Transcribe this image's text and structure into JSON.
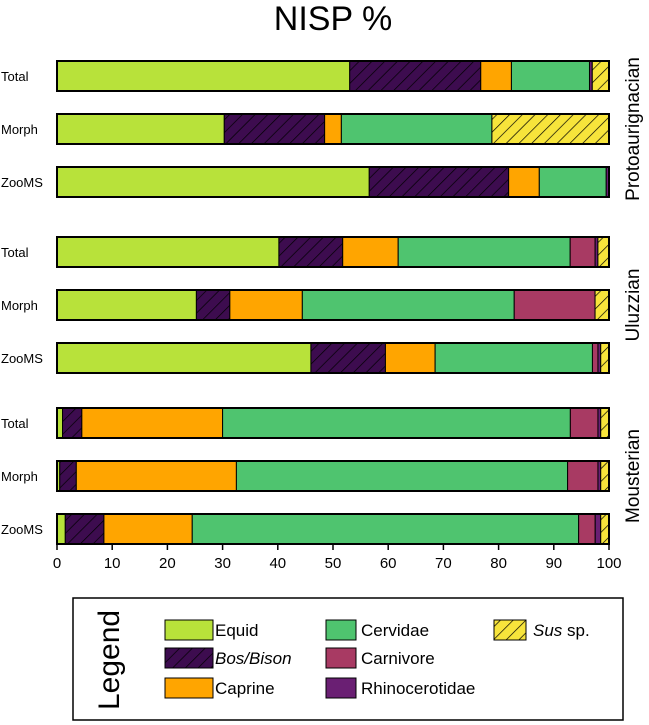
{
  "chart_data": {
    "type": "bar",
    "orientation": "horizontal",
    "stacked": true,
    "title": "NISP %",
    "xlabel": "",
    "ylabel": "",
    "xlim": [
      0,
      100
    ],
    "xticks": [
      0,
      10,
      20,
      30,
      40,
      50,
      60,
      70,
      80,
      90,
      100
    ],
    "categories_order": [
      "Equid",
      "Bos/Bison",
      "Caprine",
      "Cervidae",
      "Carnivore",
      "Rhinocerotidae",
      "Sus sp."
    ],
    "colors": {
      "Equid": "#b8e23a",
      "Bos/Bison": "#3d0c4f",
      "Caprine": "#ffa500",
      "Cervidae": "#4fc46f",
      "Carnivore": "#a83a63",
      "Rhinocerotidae": "#6a1f73",
      "Sus sp.": "#f7e43b",
      "outline": "#000000"
    },
    "hatched": [
      "Bos/Bison",
      "Sus sp."
    ],
    "groups": [
      {
        "name": "Protoaurignacian",
        "rows": [
          {
            "label": "Total",
            "values": {
              "Equid": 52.5,
              "Bos/Bison": 23.5,
              "Caprine": 5.5,
              "Cervidae": 14.0,
              "Carnivore": 0.0,
              "Rhinocerotidae": 0.5,
              "Sus sp.": 3.0
            }
          },
          {
            "label": "Morph",
            "values": {
              "Equid": 30.0,
              "Bos/Bison": 18.0,
              "Caprine": 3.0,
              "Cervidae": 27.0,
              "Carnivore": 0.0,
              "Rhinocerotidae": 0.0,
              "Sus sp.": 21.0
            }
          },
          {
            "label": "ZooMS",
            "values": {
              "Equid": 56.0,
              "Bos/Bison": 25.0,
              "Caprine": 5.5,
              "Cervidae": 12.0,
              "Carnivore": 0.0,
              "Rhinocerotidae": 0.5,
              "Sus sp.": 0.0
            }
          }
        ]
      },
      {
        "name": "Uluzzian",
        "rows": [
          {
            "label": "Total",
            "values": {
              "Equid": 40.0,
              "Bos/Bison": 11.5,
              "Caprine": 10.0,
              "Cervidae": 31.0,
              "Carnivore": 4.5,
              "Rhinocerotidae": 0.5,
              "Sus sp.": 2.0
            }
          },
          {
            "label": "Morph",
            "values": {
              "Equid": 25.0,
              "Bos/Bison": 6.0,
              "Caprine": 13.0,
              "Cervidae": 38.0,
              "Carnivore": 14.5,
              "Rhinocerotidae": 0.0,
              "Sus sp.": 2.5
            }
          },
          {
            "label": "ZooMS",
            "values": {
              "Equid": 46.0,
              "Bos/Bison": 13.5,
              "Caprine": 9.0,
              "Cervidae": 28.5,
              "Carnivore": 1.0,
              "Rhinocerotidae": 0.5,
              "Sus sp.": 1.5
            }
          }
        ]
      },
      {
        "name": "Mousterian",
        "rows": [
          {
            "label": "Total",
            "values": {
              "Equid": 1.0,
              "Bos/Bison": 3.5,
              "Caprine": 25.5,
              "Cervidae": 63.0,
              "Carnivore": 5.0,
              "Rhinocerotidae": 0.5,
              "Sus sp.": 1.5
            }
          },
          {
            "label": "Morph",
            "values": {
              "Equid": 0.5,
              "Bos/Bison": 3.0,
              "Caprine": 29.0,
              "Cervidae": 60.0,
              "Carnivore": 5.5,
              "Rhinocerotidae": 0.5,
              "Sus sp.": 1.5
            }
          },
          {
            "label": "ZooMS",
            "values": {
              "Equid": 1.5,
              "Bos/Bison": 7.0,
              "Caprine": 16.0,
              "Cervidae": 70.0,
              "Carnivore": 3.0,
              "Rhinocerotidae": 1.0,
              "Sus sp.": 1.5
            }
          }
        ]
      }
    ],
    "legend": {
      "title": "Legend",
      "entries": [
        {
          "key": "Equid",
          "label": "Equid",
          "italic": false
        },
        {
          "key": "Bos/Bison",
          "label": "Bos/Bison",
          "italic": true
        },
        {
          "key": "Caprine",
          "label": "Caprine",
          "italic": false
        },
        {
          "key": "Cervidae",
          "label": "Cervidae",
          "italic": false
        },
        {
          "key": "Carnivore",
          "label": "Carnivore",
          "italic": false
        },
        {
          "key": "Rhinocerotidae",
          "label": "Rhinocerotidae",
          "italic": false
        },
        {
          "key": "Sus sp.",
          "label_italic": "Sus",
          "label_rest": " sp.",
          "italic": true
        }
      ]
    }
  }
}
